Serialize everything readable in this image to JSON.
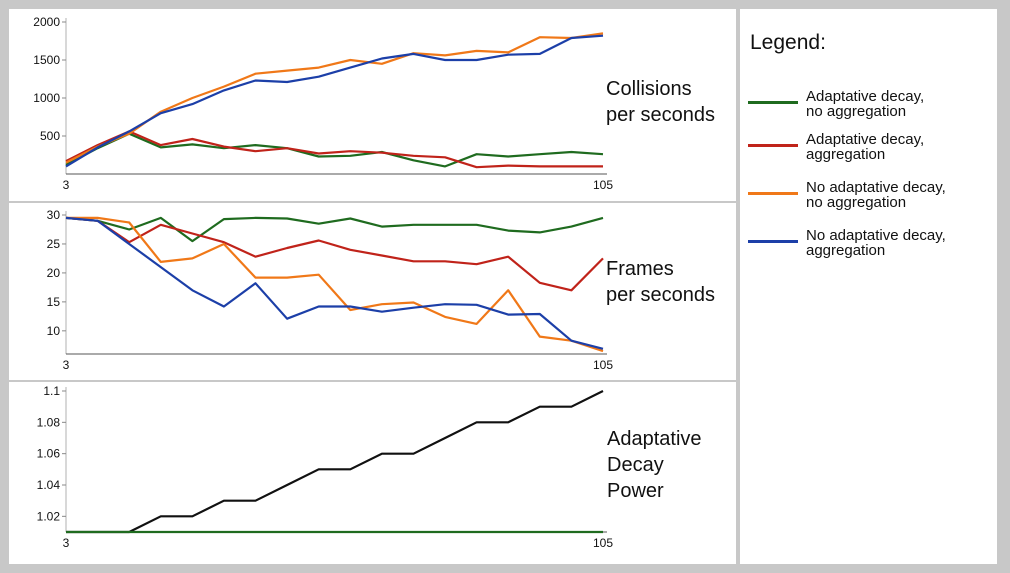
{
  "chart_data": [
    {
      "type": "line",
      "title": "Collisions per seconds",
      "title_lines": [
        "Collisions",
        "per seconds"
      ],
      "x_tick_labels": [
        "3",
        "105"
      ],
      "xlim": [
        3,
        105
      ],
      "ylim": [
        0,
        2000
      ],
      "y_ticks": [
        500,
        1000,
        1500,
        2000
      ],
      "y_tick_labels": [
        "500",
        "1000",
        "1500",
        "2000"
      ],
      "x": [
        3,
        9,
        15,
        21,
        27,
        33,
        39,
        45,
        51,
        57,
        63,
        69,
        75,
        81,
        87,
        93,
        99,
        105
      ],
      "series": [
        {
          "name": "Adaptative decay, no aggregation",
          "color": "#1f6b1f",
          "values": [
            120,
            340,
            530,
            350,
            390,
            340,
            380,
            340,
            230,
            240,
            290,
            180,
            100,
            260,
            230,
            260,
            290,
            260
          ]
        },
        {
          "name": "Adaptative decay, aggregation",
          "color": "#c0231a",
          "values": [
            170,
            380,
            560,
            380,
            460,
            360,
            300,
            340,
            270,
            300,
            280,
            240,
            220,
            90,
            110,
            100,
            100,
            100
          ]
        },
        {
          "name": "No adaptative decay, no aggregation",
          "color": "#f07818",
          "values": [
            150,
            360,
            530,
            820,
            1000,
            1150,
            1320,
            1360,
            1400,
            1500,
            1450,
            1590,
            1560,
            1620,
            1600,
            1800,
            1790,
            1850
          ]
        },
        {
          "name": "No adaptative decay, aggregation",
          "color": "#1c3fa8",
          "values": [
            100,
            350,
            560,
            800,
            920,
            1100,
            1230,
            1210,
            1280,
            1400,
            1520,
            1580,
            1500,
            1500,
            1570,
            1580,
            1790,
            1820
          ]
        }
      ]
    },
    {
      "type": "line",
      "title": "Frames per seconds",
      "title_lines": [
        "Frames",
        "per seconds"
      ],
      "x_tick_labels": [
        "3",
        "105"
      ],
      "xlim": [
        3,
        105
      ],
      "ylim": [
        6,
        30
      ],
      "y_ticks": [
        10,
        15,
        20,
        25,
        30
      ],
      "y_tick_labels": [
        "10",
        "15",
        "20",
        "25",
        "30"
      ],
      "x": [
        3,
        9,
        15,
        21,
        27,
        33,
        39,
        45,
        51,
        57,
        63,
        69,
        75,
        81,
        87,
        93,
        99,
        105
      ],
      "series": [
        {
          "name": "Adaptative decay, no aggregation",
          "color": "#1f6b1f",
          "values": [
            29.5,
            29,
            27.5,
            29.5,
            25.5,
            29.3,
            29.5,
            29.4,
            28.5,
            29.4,
            28,
            28.3,
            28.3,
            28.3,
            27.3,
            27,
            28,
            29.5
          ]
        },
        {
          "name": "Adaptative decay, aggregation",
          "color": "#c0231a",
          "values": [
            29.5,
            29,
            25.3,
            28.3,
            26.8,
            25.3,
            22.8,
            24.3,
            25.6,
            24,
            23,
            22,
            22,
            21.5,
            22.8,
            18.3,
            17,
            22.5
          ]
        },
        {
          "name": "No adaptative decay, no aggregation",
          "color": "#f07818",
          "values": [
            29.5,
            29.5,
            28.7,
            21.9,
            22.5,
            25,
            19.2,
            19.2,
            19.7,
            13.6,
            14.6,
            14.9,
            12.4,
            11.2,
            17,
            9,
            8.3,
            6.5
          ]
        },
        {
          "name": "No adaptative decay, aggregation",
          "color": "#1c3fa8",
          "values": [
            29.5,
            29,
            25,
            21,
            17,
            14.2,
            18.2,
            12.1,
            14.2,
            14.2,
            13.3,
            14,
            14.6,
            14.5,
            12.8,
            12.9,
            8.3,
            6.9
          ]
        }
      ]
    },
    {
      "type": "line",
      "title": "Adaptative Decay Power",
      "title_lines": [
        "Adaptative",
        "Decay",
        "Power"
      ],
      "x_tick_labels": [
        "3",
        "105"
      ],
      "xlim": [
        3,
        105
      ],
      "ylim": [
        1.01,
        1.1
      ],
      "y_ticks": [
        1.02,
        1.04,
        1.06,
        1.08,
        1.1
      ],
      "y_tick_labels": [
        "1.02",
        "1.04",
        "1.06",
        "1.08",
        "1.1"
      ],
      "x": [
        3,
        9,
        15,
        21,
        27,
        33,
        39,
        45,
        51,
        57,
        63,
        69,
        75,
        81,
        87,
        93,
        99,
        105
      ],
      "series": [
        {
          "name": "Adaptative decay, aggregation",
          "color": "#111111",
          "values": [
            1.01,
            1.01,
            1.01,
            1.02,
            1.02,
            1.03,
            1.03,
            1.04,
            1.05,
            1.05,
            1.06,
            1.06,
            1.07,
            1.08,
            1.08,
            1.09,
            1.09,
            1.1
          ]
        },
        {
          "name": "Adaptative decay, no aggregation",
          "color": "#1f6b1f",
          "values": [
            1.01,
            1.01,
            1.01,
            1.01,
            1.01,
            1.01,
            1.01,
            1.01,
            1.01,
            1.01,
            1.01,
            1.01,
            1.01,
            1.01,
            1.01,
            1.01,
            1.01,
            1.01
          ]
        }
      ]
    }
  ],
  "legend": {
    "title": "Legend:",
    "items": [
      {
        "lines": [
          "Adaptative decay,",
          "no aggregation"
        ],
        "color": "#1f6b1f"
      },
      {
        "lines": [
          "Adaptative decay,",
          "aggregation"
        ],
        "color": "#c0231a"
      },
      {
        "lines": [
          "No adaptative decay,",
          "no aggregation"
        ],
        "color": "#f07818"
      },
      {
        "lines": [
          "No adaptative decay,",
          "aggregation"
        ],
        "color": "#1c3fa8"
      }
    ]
  }
}
